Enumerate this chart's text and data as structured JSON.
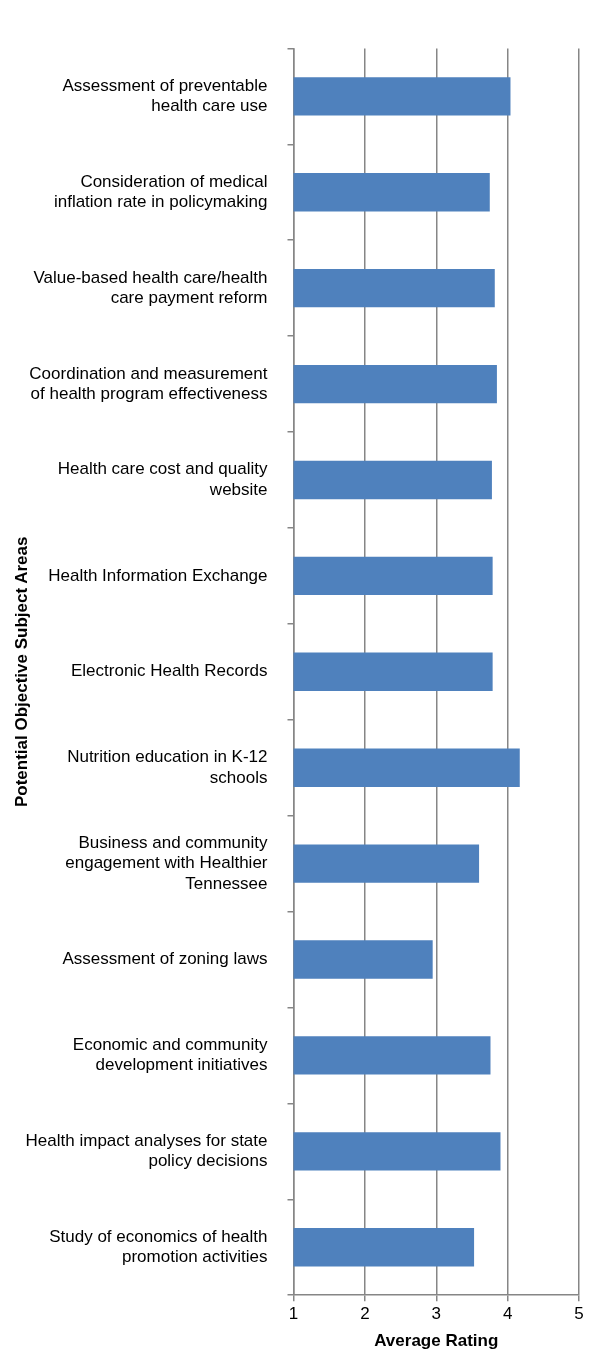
{
  "chart_data": {
    "type": "bar",
    "orientation": "horizontal",
    "xlabel": "Average Rating",
    "ylabel": "Potential Objective Subject Areas",
    "categories": [
      "Assessment of preventable health care use",
      "Consideration of medical inflation rate in policymaking",
      "Value-based health care/health care payment reform",
      "Coordination and measurement of health program effectiveness",
      "Health care cost and quality website",
      "Health Information Exchange",
      "Electronic Health Records",
      "Nutrition education in K-12 schools",
      "Business and community engagement with Healthier Tennessee",
      "Assessment of zoning laws",
      "Economic and community development initiatives",
      "Health impact analyses for state policy decisions",
      "Study of economics of health promotion activities"
    ],
    "values": [
      4.04,
      3.75,
      3.82,
      3.85,
      3.78,
      3.79,
      3.79,
      4.17,
      3.6,
      2.95,
      3.76,
      3.9,
      3.53
    ],
    "color": "#4f81bd",
    "xlim": [
      1,
      5
    ],
    "xticks": [
      1,
      2,
      3,
      4,
      5
    ],
    "grid": "x",
    "legend": false
  }
}
